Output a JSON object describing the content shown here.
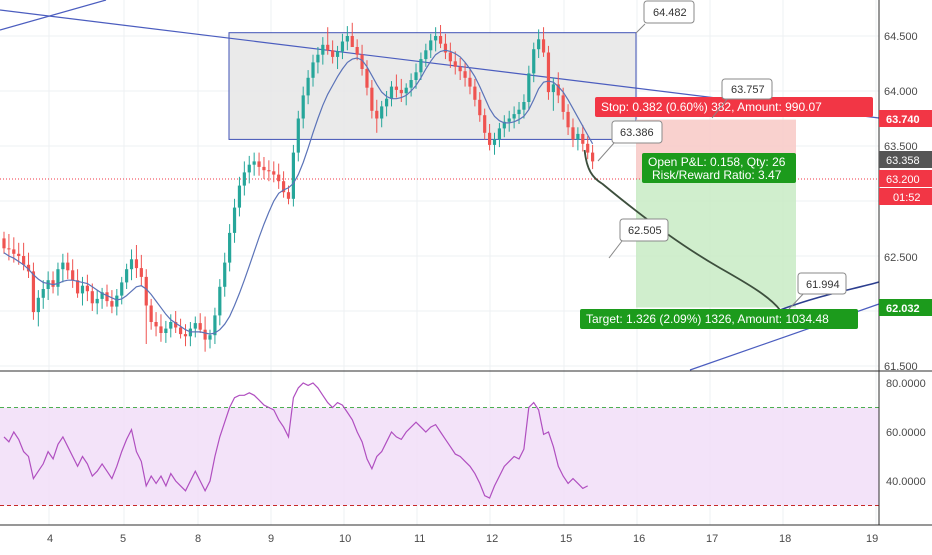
{
  "colors": {
    "up": "#26a69a",
    "down": "#ef5350",
    "ma": "#5b73b8",
    "trend_line": "#4b5dbf",
    "range_box_fill": "#e6e6e6",
    "range_box_stroke": "#3f51b5",
    "stop_zone": "#f8c9c6",
    "target_zone": "#c8ebc4",
    "stop_label": "#f23645",
    "target_label": "#1c9b1c",
    "entry_label": "#1c9b1c",
    "current_price_label": "#555555",
    "projection": "#3d4f3d",
    "rsi_band": "#f0dcf7",
    "rsi_line": "#b04fc0",
    "rsi_upper": "#4caf50",
    "rsi_lower": "#c62828"
  },
  "chart_data": [
    {
      "type": "candlestick",
      "y_ticks": [
        "64.500",
        "64.000",
        "63.500",
        "62.500",
        "61.500"
      ],
      "ylim": [
        61.5,
        64.8
      ],
      "x_ticks": [
        "4",
        "5",
        "8",
        "9",
        "10",
        "11",
        "12",
        "15",
        "16",
        "17",
        "18",
        "19"
      ],
      "grid": true,
      "price_labels": {
        "stop_level": "63.740",
        "current": "63.358",
        "entry": "63.200",
        "countdown": "01:52",
        "target_level": "62.032"
      },
      "callouts": {
        "box_top": "64.482",
        "stop_price": "63.757",
        "entry_price": "63.386",
        "mid_projection": "62.505",
        "target_price": "61.994"
      },
      "position": {
        "stop_text": "Stop: 0.382 (0.60%) 382, Amount: 990.07",
        "pnl_text": "Open P&L: 0.158, Qty: 26",
        "rr_text": "Risk/Reward Ratio: 3.47",
        "target_text": "Target: 1.326 (2.09%) 1326, Amount: 1034.48",
        "entry": 63.2,
        "stop": 63.74,
        "target": 62.032
      },
      "range_box": {
        "top": 64.53,
        "bottom": 63.56
      },
      "candles": [
        [
          62.66,
          62.72,
          62.52,
          62.57
        ],
        [
          62.57,
          62.7,
          62.46,
          62.56
        ],
        [
          62.56,
          62.67,
          62.44,
          62.52
        ],
        [
          62.52,
          62.62,
          62.42,
          62.5
        ],
        [
          62.5,
          62.62,
          62.37,
          62.42
        ],
        [
          62.42,
          62.53,
          62.3,
          62.36
        ],
        [
          62.36,
          62.44,
          61.92,
          61.99
        ],
        [
          61.99,
          62.19,
          61.86,
          62.12
        ],
        [
          62.12,
          62.28,
          62.02,
          62.2
        ],
        [
          62.2,
          62.36,
          62.1,
          62.28
        ],
        [
          62.28,
          62.36,
          62.16,
          62.22
        ],
        [
          62.22,
          62.44,
          62.14,
          62.38
        ],
        [
          62.38,
          62.52,
          62.26,
          62.44
        ],
        [
          62.44,
          62.53,
          62.29,
          62.37
        ],
        [
          62.37,
          62.47,
          62.21,
          62.28
        ],
        [
          62.28,
          62.38,
          62.12,
          62.16
        ],
        [
          62.16,
          62.31,
          62.05,
          62.23
        ],
        [
          62.23,
          62.33,
          62.09,
          62.18
        ],
        [
          62.18,
          62.25,
          62.0,
          62.07
        ],
        [
          62.07,
          62.19,
          61.97,
          62.11
        ],
        [
          62.11,
          62.21,
          62.02,
          62.17
        ],
        [
          62.17,
          62.24,
          62.04,
          62.09
        ],
        [
          62.09,
          62.19,
          61.98,
          62.04
        ],
        [
          62.04,
          62.2,
          61.96,
          62.14
        ],
        [
          62.14,
          62.31,
          62.06,
          62.26
        ],
        [
          62.26,
          62.43,
          62.2,
          62.38
        ],
        [
          62.38,
          62.56,
          62.28,
          62.47
        ],
        [
          62.47,
          62.6,
          62.3,
          62.39
        ],
        [
          62.39,
          62.51,
          62.23,
          62.31
        ],
        [
          62.31,
          62.38,
          61.7,
          62.05
        ],
        [
          62.05,
          62.11,
          61.83,
          61.9
        ],
        [
          61.9,
          61.99,
          61.77,
          61.86
        ],
        [
          61.86,
          61.97,
          61.72,
          61.8
        ],
        [
          61.8,
          61.91,
          61.71,
          61.84
        ],
        [
          61.84,
          61.97,
          61.76,
          61.9
        ],
        [
          61.9,
          62.0,
          61.8,
          61.85
        ],
        [
          61.85,
          61.93,
          61.75,
          61.79
        ],
        [
          61.79,
          61.88,
          61.68,
          61.77
        ],
        [
          61.77,
          61.9,
          61.68,
          61.84
        ],
        [
          61.84,
          61.95,
          61.76,
          61.89
        ],
        [
          61.89,
          61.98,
          61.8,
          61.83
        ],
        [
          61.83,
          61.95,
          61.63,
          61.74
        ],
        [
          61.74,
          61.83,
          61.66,
          61.78
        ],
        [
          61.78,
          62.03,
          61.7,
          61.96
        ],
        [
          61.96,
          62.29,
          61.87,
          62.22
        ],
        [
          62.22,
          62.53,
          62.13,
          62.44
        ],
        [
          62.44,
          62.79,
          62.36,
          62.71
        ],
        [
          62.71,
          63.02,
          62.62,
          62.94
        ],
        [
          62.94,
          63.22,
          62.86,
          63.14
        ],
        [
          63.14,
          63.36,
          63.05,
          63.26
        ],
        [
          63.26,
          63.41,
          63.16,
          63.33
        ],
        [
          63.33,
          63.44,
          63.23,
          63.36
        ],
        [
          63.36,
          63.44,
          63.23,
          63.31
        ],
        [
          63.31,
          63.4,
          63.2,
          63.28
        ],
        [
          63.28,
          63.37,
          63.18,
          63.27
        ],
        [
          63.27,
          63.36,
          63.17,
          63.24
        ],
        [
          63.24,
          63.34,
          63.11,
          63.18
        ],
        [
          63.18,
          63.27,
          63.03,
          63.08
        ],
        [
          63.08,
          63.14,
          62.97,
          63.02
        ],
        [
          63.02,
          63.51,
          62.95,
          63.44
        ],
        [
          63.44,
          63.82,
          63.36,
          63.75
        ],
        [
          63.75,
          64.04,
          63.66,
          63.96
        ],
        [
          63.96,
          64.19,
          63.88,
          64.12
        ],
        [
          64.12,
          64.33,
          64.04,
          64.26
        ],
        [
          64.26,
          64.4,
          64.16,
          64.33
        ],
        [
          64.33,
          64.49,
          64.24,
          64.42
        ],
        [
          64.42,
          64.58,
          64.33,
          64.37
        ],
        [
          64.37,
          64.46,
          64.25,
          64.31
        ],
        [
          64.31,
          64.41,
          64.2,
          64.36
        ],
        [
          64.36,
          64.52,
          64.29,
          64.45
        ],
        [
          64.45,
          64.59,
          64.37,
          64.5
        ],
        [
          64.5,
          64.62,
          64.42,
          64.4
        ],
        [
          64.4,
          64.47,
          64.28,
          64.33
        ],
        [
          64.33,
          64.42,
          64.14,
          64.2
        ],
        [
          64.2,
          64.28,
          63.96,
          64.03
        ],
        [
          64.03,
          64.1,
          63.75,
          63.82
        ],
        [
          63.82,
          63.92,
          63.62,
          63.75
        ],
        [
          63.75,
          63.91,
          63.67,
          63.86
        ],
        [
          63.86,
          64.0,
          63.77,
          63.93
        ],
        [
          63.93,
          64.09,
          63.86,
          64.04
        ],
        [
          64.04,
          64.15,
          63.94,
          64.01
        ],
        [
          64.01,
          64.11,
          63.9,
          63.98
        ],
        [
          63.98,
          64.07,
          63.87,
          64.03
        ],
        [
          64.03,
          64.16,
          63.95,
          64.1
        ],
        [
          64.1,
          64.25,
          64.02,
          64.17
        ],
        [
          64.17,
          64.35,
          64.1,
          64.29
        ],
        [
          64.29,
          64.43,
          64.22,
          64.37
        ],
        [
          64.37,
          64.52,
          64.3,
          64.46
        ],
        [
          64.46,
          64.58,
          64.36,
          64.5
        ],
        [
          64.5,
          64.6,
          64.39,
          64.43
        ],
        [
          64.43,
          64.52,
          64.29,
          64.35
        ],
        [
          64.35,
          64.44,
          64.21,
          64.27
        ],
        [
          64.27,
          64.36,
          64.15,
          64.22
        ],
        [
          64.22,
          64.3,
          64.1,
          64.18
        ],
        [
          64.18,
          64.26,
          64.04,
          64.12
        ],
        [
          64.12,
          64.2,
          63.97,
          64.04
        ],
        [
          64.04,
          64.11,
          63.86,
          63.92
        ],
        [
          63.92,
          63.99,
          63.72,
          63.78
        ],
        [
          63.78,
          63.84,
          63.56,
          63.62
        ],
        [
          63.62,
          63.7,
          63.46,
          63.51
        ],
        [
          63.51,
          63.62,
          63.42,
          63.56
        ],
        [
          63.56,
          63.71,
          63.49,
          63.66
        ],
        [
          63.66,
          63.78,
          63.58,
          63.72
        ],
        [
          63.72,
          63.82,
          63.63,
          63.75
        ],
        [
          63.75,
          63.86,
          63.66,
          63.79
        ],
        [
          63.79,
          63.9,
          63.7,
          63.83
        ],
        [
          63.83,
          63.97,
          63.75,
          63.9
        ],
        [
          63.9,
          64.23,
          63.83,
          64.16
        ],
        [
          64.16,
          64.44,
          64.08,
          64.38
        ],
        [
          64.38,
          64.56,
          64.3,
          64.47
        ],
        [
          64.47,
          64.58,
          64.31,
          64.35
        ],
        [
          64.35,
          64.41,
          63.92,
          63.99
        ],
        [
          63.99,
          64.12,
          63.82,
          64.06
        ],
        [
          64.06,
          64.17,
          63.89,
          63.96
        ],
        [
          63.96,
          64.03,
          63.74,
          63.81
        ],
        [
          63.81,
          63.88,
          63.6,
          63.67
        ],
        [
          63.67,
          63.75,
          63.49,
          63.56
        ],
        [
          63.56,
          63.67,
          63.46,
          63.61
        ],
        [
          63.61,
          63.69,
          63.45,
          63.52
        ],
        [
          63.52,
          63.59,
          63.38,
          63.44
        ],
        [
          63.44,
          63.51,
          63.29,
          63.36
        ]
      ],
      "moving_average": [
        62.53,
        62.5,
        62.48,
        62.45,
        62.42,
        62.38,
        62.33,
        62.29,
        62.26,
        62.25,
        62.24,
        62.25,
        62.27,
        62.28,
        62.28,
        62.27,
        62.26,
        62.25,
        62.22,
        62.19,
        62.16,
        62.14,
        62.12,
        62.1,
        62.11,
        62.14,
        62.18,
        62.22,
        62.23,
        62.2,
        62.15,
        62.09,
        62.03,
        61.97,
        61.92,
        61.89,
        61.86,
        61.83,
        61.81,
        61.81,
        61.81,
        61.8,
        61.79,
        61.8,
        61.83,
        61.88,
        61.95,
        62.05,
        62.16,
        62.28,
        62.41,
        62.54,
        62.67,
        62.79,
        62.9,
        63.0,
        63.07,
        63.1,
        63.12,
        63.16,
        63.24,
        63.35,
        63.48,
        63.62,
        63.75,
        63.87,
        63.97,
        64.05,
        64.13,
        64.2,
        64.26,
        64.29,
        64.3,
        64.28,
        64.22,
        64.14,
        64.06,
        63.99,
        63.95,
        63.93,
        63.93,
        63.94,
        63.96,
        64.0,
        64.05,
        64.12,
        64.2,
        64.27,
        64.33,
        64.36,
        64.37,
        64.36,
        64.34,
        64.31,
        64.26,
        64.2,
        64.13,
        64.04,
        63.94,
        63.84,
        63.77,
        63.73,
        63.71,
        63.71,
        63.72,
        63.74,
        63.77,
        63.83,
        63.92,
        64.02,
        64.08,
        64.09,
        64.08,
        64.04,
        63.99,
        63.92,
        63.84,
        63.76,
        63.68,
        63.6,
        63.52
      ]
    },
    {
      "type": "line",
      "y_ticks": [
        "80.0000",
        "60.0000",
        "40.0000"
      ],
      "ylim": [
        26,
        82
      ],
      "upper": 70,
      "lower": 30,
      "x_ticks": [
        "4",
        "5",
        "8",
        "9",
        "10",
        "11",
        "12",
        "15",
        "16",
        "17",
        "18",
        "19"
      ],
      "values": [
        58,
        56,
        60,
        57,
        52,
        50,
        41,
        44,
        47,
        52,
        49,
        55,
        58,
        54,
        50,
        46,
        50,
        47,
        42,
        44,
        47,
        44,
        41,
        46,
        52,
        57,
        61,
        52,
        48,
        38,
        42,
        39,
        42,
        38,
        43,
        40,
        38,
        36,
        40,
        44,
        40,
        36,
        40,
        50,
        58,
        64,
        70,
        74,
        75,
        75,
        76,
        75,
        73,
        71,
        70,
        69,
        65,
        62,
        58,
        74,
        78,
        80,
        79,
        80,
        78,
        75,
        72,
        70,
        72,
        71,
        68,
        65,
        60,
        56,
        49,
        45,
        50,
        52,
        56,
        60,
        58,
        57,
        60,
        62,
        64,
        62,
        60,
        62,
        63,
        60,
        57,
        54,
        51,
        50,
        48,
        46,
        43,
        39,
        34,
        33,
        38,
        42,
        46,
        48,
        50,
        49,
        53,
        70,
        72,
        69,
        59,
        60,
        54,
        46,
        42,
        39,
        41,
        39,
        37,
        38
      ]
    }
  ]
}
